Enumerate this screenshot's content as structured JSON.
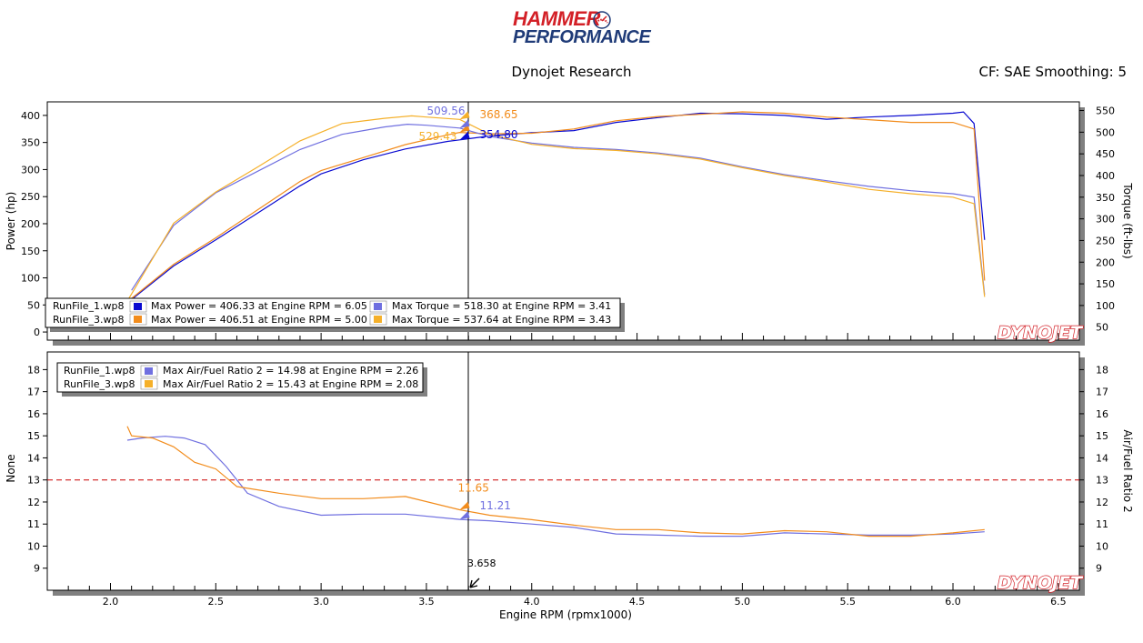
{
  "header": {
    "logo_line1": "HAMMER",
    "logo_line2": "PERFORMANCE",
    "subtitle": "Dynojet Research",
    "cf_text": "CF: SAE Smoothing: 5"
  },
  "colors": {
    "run1_power": "#0a0ad0",
    "run1_torque": "#7070e0",
    "run3_power": "#f28c1c",
    "run3_torque": "#f5b02a",
    "afr_target": "#cc0000"
  },
  "watermark": "DYNOJET",
  "chart_data": [
    {
      "type": "line",
      "xlabel": "",
      "ylabel": "Power (hp)",
      "y2label": "Torque (ft-lbs)",
      "xlim": [
        1.7,
        6.6
      ],
      "ylim": [
        -15,
        425
      ],
      "y2lim": [
        20,
        570
      ],
      "yticks": [
        0,
        50,
        100,
        150,
        200,
        250,
        300,
        350,
        400
      ],
      "y2ticks": [
        50,
        100,
        150,
        200,
        250,
        300,
        350,
        400,
        450,
        500,
        550
      ],
      "cursor_x": 3.658,
      "series": [
        {
          "name": "RunFile_1.wp8",
          "quantity": "Power",
          "axis": "left",
          "color_key": "run1_power",
          "x": [
            2.1,
            2.3,
            2.5,
            2.7,
            2.9,
            3.0,
            3.2,
            3.4,
            3.6,
            3.658,
            3.8,
            4.0,
            4.2,
            4.4,
            4.6,
            4.8,
            5.0,
            5.2,
            5.4,
            5.6,
            5.8,
            6.0,
            6.05,
            6.1,
            6.15
          ],
          "y": [
            60,
            122,
            170,
            220,
            270,
            292,
            318,
            338,
            352,
            354.8,
            362,
            368,
            372,
            387,
            396,
            404,
            403,
            400,
            393,
            397,
            400,
            404,
            406.33,
            385,
            170
          ]
        },
        {
          "name": "RunFile_3.wp8",
          "quantity": "Power",
          "axis": "left",
          "color_key": "run3_power",
          "x": [
            2.1,
            2.3,
            2.5,
            2.7,
            2.9,
            3.0,
            3.2,
            3.4,
            3.6,
            3.658,
            3.8,
            4.0,
            4.2,
            4.4,
            4.6,
            4.8,
            5.0,
            5.2,
            5.4,
            5.6,
            5.8,
            6.0,
            6.1,
            6.15
          ],
          "y": [
            62,
            125,
            174,
            226,
            278,
            298,
            322,
            346,
            364,
            368.65,
            366,
            367,
            375,
            390,
            398,
            402,
            406.51,
            404,
            397,
            392,
            387,
            387,
            375,
            95
          ]
        },
        {
          "name": "RunFile_1.wp8",
          "quantity": "Torque",
          "axis": "right",
          "color_key": "run1_torque",
          "x": [
            2.1,
            2.3,
            2.5,
            2.7,
            2.9,
            3.1,
            3.3,
            3.41,
            3.5,
            3.658,
            3.8,
            4.0,
            4.2,
            4.4,
            4.6,
            4.8,
            5.0,
            5.2,
            5.4,
            5.6,
            5.8,
            6.0,
            6.1,
            6.15
          ],
          "y": [
            135,
            285,
            360,
            410,
            460,
            495,
            512,
            518.3,
            516,
            509.56,
            490,
            475,
            465,
            460,
            452,
            440,
            420,
            402,
            388,
            375,
            365,
            358,
            350,
            125
          ]
        },
        {
          "name": "RunFile_3.wp8",
          "quantity": "Torque",
          "axis": "right",
          "color_key": "run3_torque",
          "x": [
            2.08,
            2.3,
            2.5,
            2.7,
            2.9,
            3.1,
            3.3,
            3.43,
            3.5,
            3.658,
            3.8,
            4.0,
            4.2,
            4.4,
            4.6,
            4.8,
            5.0,
            5.2,
            5.4,
            5.6,
            5.8,
            6.0,
            6.1,
            6.15
          ],
          "y": [
            110,
            290,
            362,
            420,
            480,
            520,
            532,
            537.64,
            535,
            529.43,
            495,
            472,
            462,
            458,
            450,
            438,
            418,
            400,
            385,
            368,
            358,
            350,
            335,
            120
          ]
        }
      ],
      "cursor_labels": [
        {
          "text": "509.56",
          "color_key": "run1_torque"
        },
        {
          "text": "368.65",
          "color_key": "run3_power"
        },
        {
          "text": "529.43",
          "color_key": "run3_torque"
        },
        {
          "text": "354.80",
          "color_key": "run1_power"
        }
      ],
      "legend": {
        "placement": "bottom-left",
        "rows": [
          {
            "file": "RunFile_1.wp8",
            "power": "Max Power = 406.33 at Engine RPM = 6.05",
            "torque": "Max Torque = 518.30 at Engine RPM = 3.41",
            "power_color": "run1_power",
            "torque_color": "run1_torque"
          },
          {
            "file": "RunFile_3.wp8",
            "power": "Max Power = 406.51 at Engine RPM = 5.00",
            "torque": "Max Torque = 537.64 at Engine RPM = 3.43",
            "power_color": "run3_power",
            "torque_color": "run3_torque"
          }
        ]
      }
    },
    {
      "type": "line",
      "xlabel": "Engine RPM (rpmx1000)",
      "ylabel": "None",
      "y2label": "Air/Fuel Ratio 2",
      "xlim": [
        1.7,
        6.6
      ],
      "ylim": [
        8,
        18.8
      ],
      "xticks": [
        2.0,
        2.5,
        3.0,
        3.5,
        4.0,
        4.5,
        5.0,
        5.5,
        6.0,
        6.5
      ],
      "xtick_labels": [
        "2.0",
        "2.5",
        "3.0",
        "3.5",
        "4.0",
        "4.5",
        "5.0",
        "5.5",
        "6.0",
        "6.5"
      ],
      "yticks": [
        9,
        10,
        11,
        12,
        13,
        14,
        15,
        16,
        17,
        18
      ],
      "reference_line": 13,
      "cursor_x": 3.658,
      "cursor_label": "3.658",
      "series": [
        {
          "name": "RunFile_1.wp8",
          "quantity": "Air/Fuel Ratio 2",
          "color_key": "run1_torque",
          "x": [
            2.08,
            2.15,
            2.26,
            2.35,
            2.45,
            2.55,
            2.65,
            2.8,
            3.0,
            3.2,
            3.4,
            3.658,
            3.8,
            4.0,
            4.2,
            4.4,
            4.6,
            4.8,
            5.0,
            5.2,
            5.4,
            5.6,
            5.8,
            6.0,
            6.15
          ],
          "y": [
            14.8,
            14.9,
            14.98,
            14.9,
            14.6,
            13.6,
            12.4,
            11.8,
            11.4,
            11.45,
            11.45,
            11.21,
            11.15,
            11.0,
            10.85,
            10.55,
            10.5,
            10.45,
            10.45,
            10.6,
            10.55,
            10.5,
            10.5,
            10.55,
            10.65
          ]
        },
        {
          "name": "RunFile_3.wp8",
          "quantity": "Air/Fuel Ratio 2",
          "color_key": "run3_power",
          "x": [
            2.08,
            2.1,
            2.2,
            2.3,
            2.4,
            2.5,
            2.6,
            2.8,
            3.0,
            3.2,
            3.4,
            3.658,
            3.8,
            4.0,
            4.2,
            4.4,
            4.6,
            4.8,
            5.0,
            5.2,
            5.4,
            5.6,
            5.8,
            6.0,
            6.15
          ],
          "y": [
            15.43,
            15.0,
            14.9,
            14.5,
            13.8,
            13.5,
            12.7,
            12.4,
            12.15,
            12.15,
            12.25,
            11.65,
            11.4,
            11.2,
            10.95,
            10.75,
            10.75,
            10.6,
            10.55,
            10.7,
            10.65,
            10.45,
            10.45,
            10.6,
            10.75
          ]
        }
      ],
      "cursor_labels": [
        {
          "text": "11.65",
          "color_key": "run3_power"
        },
        {
          "text": "11.21",
          "color_key": "run1_torque"
        }
      ],
      "legend": {
        "placement": "top-left",
        "rows": [
          {
            "file": "RunFile_1.wp8",
            "text": "Max Air/Fuel Ratio 2 = 14.98 at Engine RPM = 2.26",
            "color": "run1_torque"
          },
          {
            "file": "RunFile_3.wp8",
            "text": "Max Air/Fuel Ratio 2 = 15.43 at Engine RPM = 2.08",
            "color": "run3_power"
          }
        ]
      }
    }
  ]
}
